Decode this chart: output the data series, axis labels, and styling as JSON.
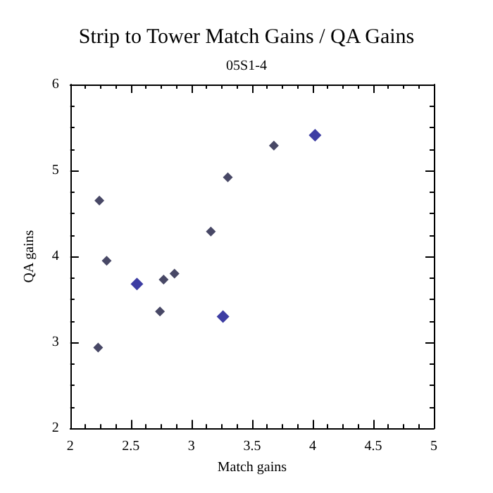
{
  "chart_data": {
    "type": "scatter",
    "title": "Strip to Tower Match Gains / QA Gains",
    "subtitle": "05S1-4",
    "xlabel": "Match gains",
    "ylabel": "QA gains",
    "series": [
      {
        "color": "#1a1a40",
        "x": [
          2.24,
          2.3,
          2.23,
          2.77,
          2.74,
          2.86,
          3.16,
          3.3,
          3.68
        ],
        "values": [
          4.65,
          3.95,
          2.94,
          3.73,
          3.36,
          3.8,
          4.29,
          4.92,
          5.29
        ]
      },
      {
        "color": "#0c0c8c",
        "x": [
          2.55,
          3.26,
          4.02
        ],
        "values": [
          3.68,
          3.3,
          5.41
        ]
      }
    ],
    "xlim": [
      2,
      5
    ],
    "xticks": [
      2,
      2.5,
      3,
      3.5,
      4,
      4.5,
      5
    ],
    "ylim": [
      2,
      6
    ],
    "yticks": [
      2,
      3,
      4,
      5,
      6
    ],
    "grid": false,
    "marker": "diamond"
  }
}
